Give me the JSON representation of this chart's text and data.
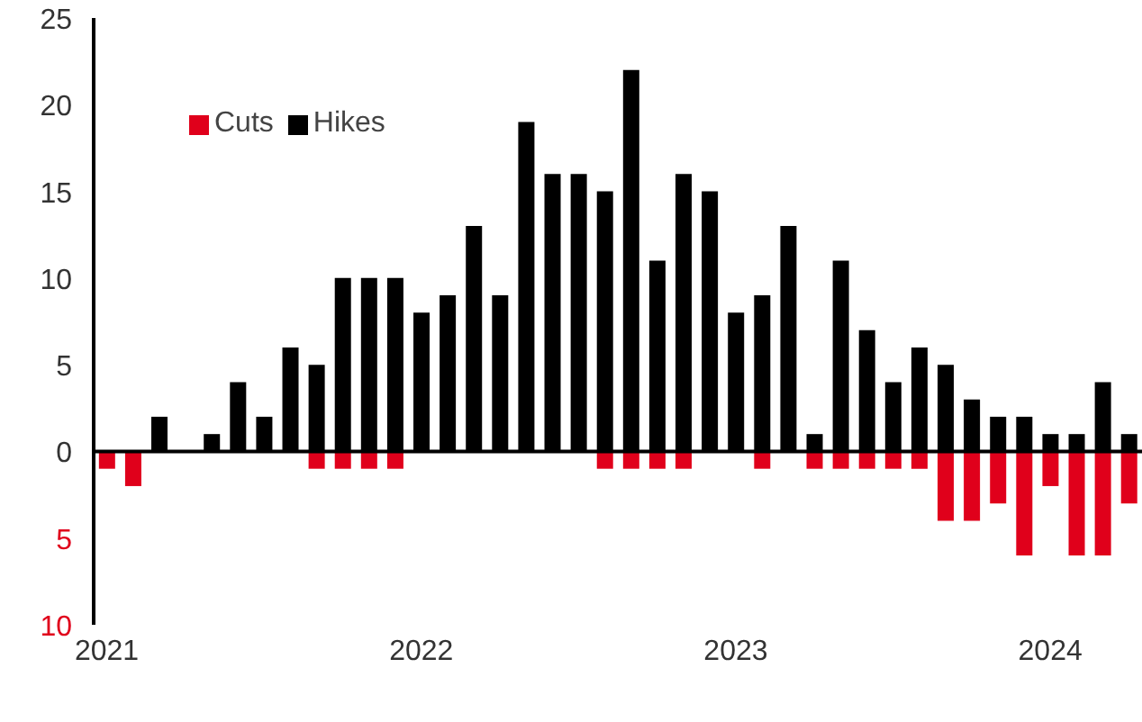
{
  "chart_data": {
    "type": "bar",
    "stacked": true,
    "categories": [
      "2021",
      null,
      null,
      null,
      null,
      null,
      null,
      null,
      null,
      null,
      null,
      null,
      "2022",
      null,
      null,
      null,
      null,
      null,
      null,
      null,
      null,
      null,
      null,
      null,
      "2023",
      null,
      null,
      null,
      null,
      null,
      null,
      null,
      null,
      null,
      null,
      null,
      "2024",
      null,
      null,
      null
    ],
    "series": [
      {
        "name": "Cuts",
        "color": "#e0001b",
        "values": [
          -1,
          -2,
          0,
          0,
          0,
          0,
          0,
          0,
          -1,
          -1,
          -1,
          -1,
          0,
          0,
          0,
          0,
          0,
          0,
          0,
          -1,
          -1,
          -1,
          -1,
          0,
          0,
          -1,
          0,
          -1,
          -1,
          -1,
          -1,
          -1,
          -4,
          -4,
          -3,
          -6,
          -2,
          -6,
          -6,
          -3
        ]
      },
      {
        "name": "Hikes",
        "color": "#000000",
        "values": [
          0,
          0,
          2,
          0,
          1,
          4,
          2,
          6,
          5,
          10,
          10,
          10,
          8,
          9,
          13,
          9,
          19,
          16,
          16,
          15,
          22,
          11,
          16,
          15,
          8,
          9,
          13,
          1,
          11,
          7,
          4,
          6,
          5,
          3,
          2,
          2,
          1,
          1,
          4,
          1
        ]
      }
    ],
    "ylim": [
      -10,
      25
    ],
    "yticks": [
      {
        "value": -10,
        "label": "10"
      },
      {
        "value": -5,
        "label": "5"
      },
      0,
      5,
      10,
      15,
      20,
      25
    ],
    "legend": "top left"
  }
}
